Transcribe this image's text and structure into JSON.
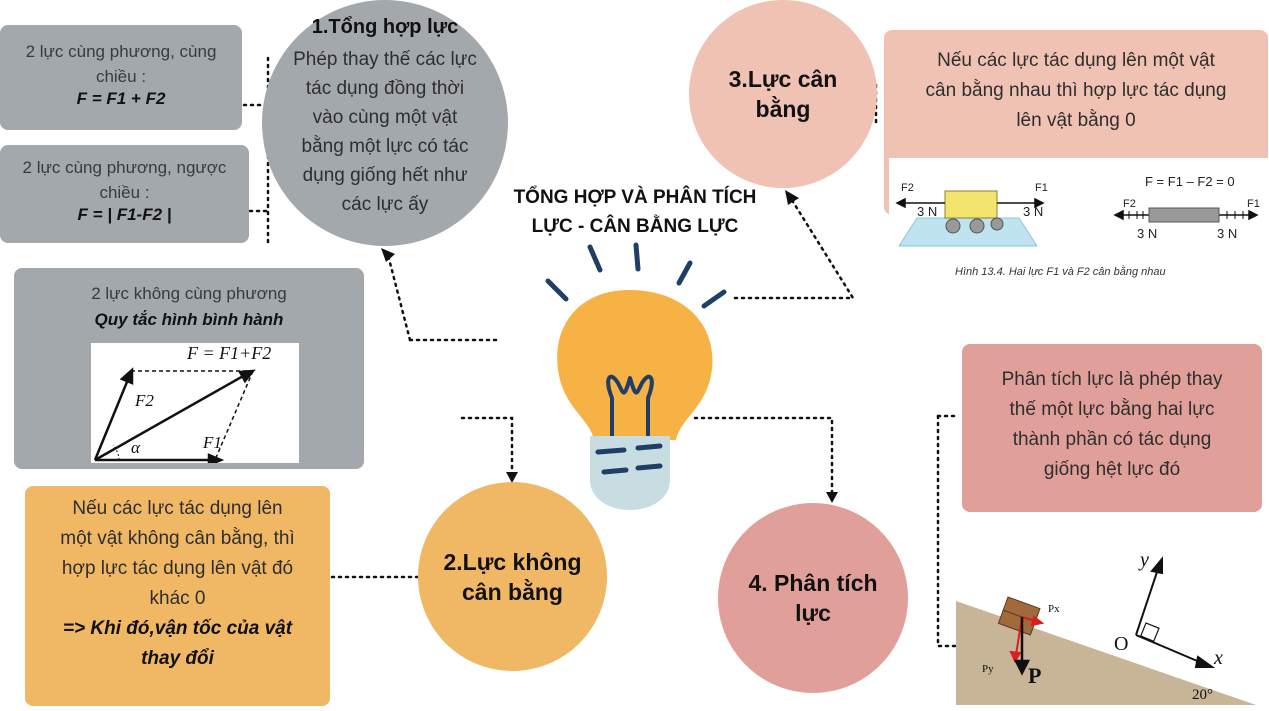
{
  "center_title": [
    "TỔNG HỢP VÀ PHÂN TÍCH",
    "LỰC - CÂN BẰNG LỰC"
  ],
  "node1": {
    "title": "1.Tổng hợp lực",
    "body": [
      "Phép thay thế các lực",
      "tác dụng đồng thời",
      "vào cùng một vật",
      "bằng một lực có tác",
      "dụng giống hết như",
      "các lực ấy"
    ]
  },
  "same_direction": {
    "text": [
      "2 lực cùng phương, cùng",
      "chiều :"
    ],
    "formula": "F = F1 + F2"
  },
  "opposite_direction": {
    "text": [
      "2 lực cùng phương, ngược",
      "chiều :"
    ],
    "formula": "F = | F1-F2 |"
  },
  "not_same_line": {
    "text": "2 lực không cùng phương",
    "rule": "Quy tắc hình bình hành",
    "figure_formula": "F = F1+F2",
    "labels": {
      "f1": "F1",
      "f2": "F2",
      "alpha": "α"
    }
  },
  "node2": {
    "title": [
      "2.Lực không",
      "cân bằng"
    ],
    "body": [
      "Nếu các lực tác dụng  lên",
      "một vật không cân bằng, thì",
      "hợp lực tác dụng lên vật đó",
      "khác 0"
    ],
    "conclusion": [
      "=> Khi đó,vận tốc của vật",
      "thay đổi"
    ]
  },
  "node3": {
    "title": [
      "3.Lực cân",
      "bằng"
    ],
    "body": [
      "Nếu các lực tác dụng lên một vật",
      "cân bằng nhau thì hợp lực tác dụng",
      "lên vật bằng 0"
    ],
    "figure": {
      "formula": "F = F1 – F2 = 0",
      "left_force": "3 N",
      "right_force": "3 N",
      "f1": "F1",
      "f2": "F2",
      "caption": "Hình 13.4. Hai lực F1 và F2 cân bằng nhau"
    }
  },
  "node4": {
    "title": [
      "4. Phân tích",
      "lực"
    ],
    "body": [
      "Phân tích lực là phép thay",
      "thế một lực bằng hai lực",
      "thành phần có tác dụng",
      "giống hệt lực đó"
    ],
    "figure": {
      "y": "y",
      "x": "x",
      "o": "O",
      "p": "P",
      "px": "Px",
      "py": "Py",
      "angle": "20°"
    }
  },
  "colors": {
    "grey": "#a3a8ad",
    "peach": "#f0c2b3",
    "orange": "#f0b764",
    "rose": "#e0a099",
    "bulb": "#f6b244",
    "navy": "#1f3f66"
  }
}
